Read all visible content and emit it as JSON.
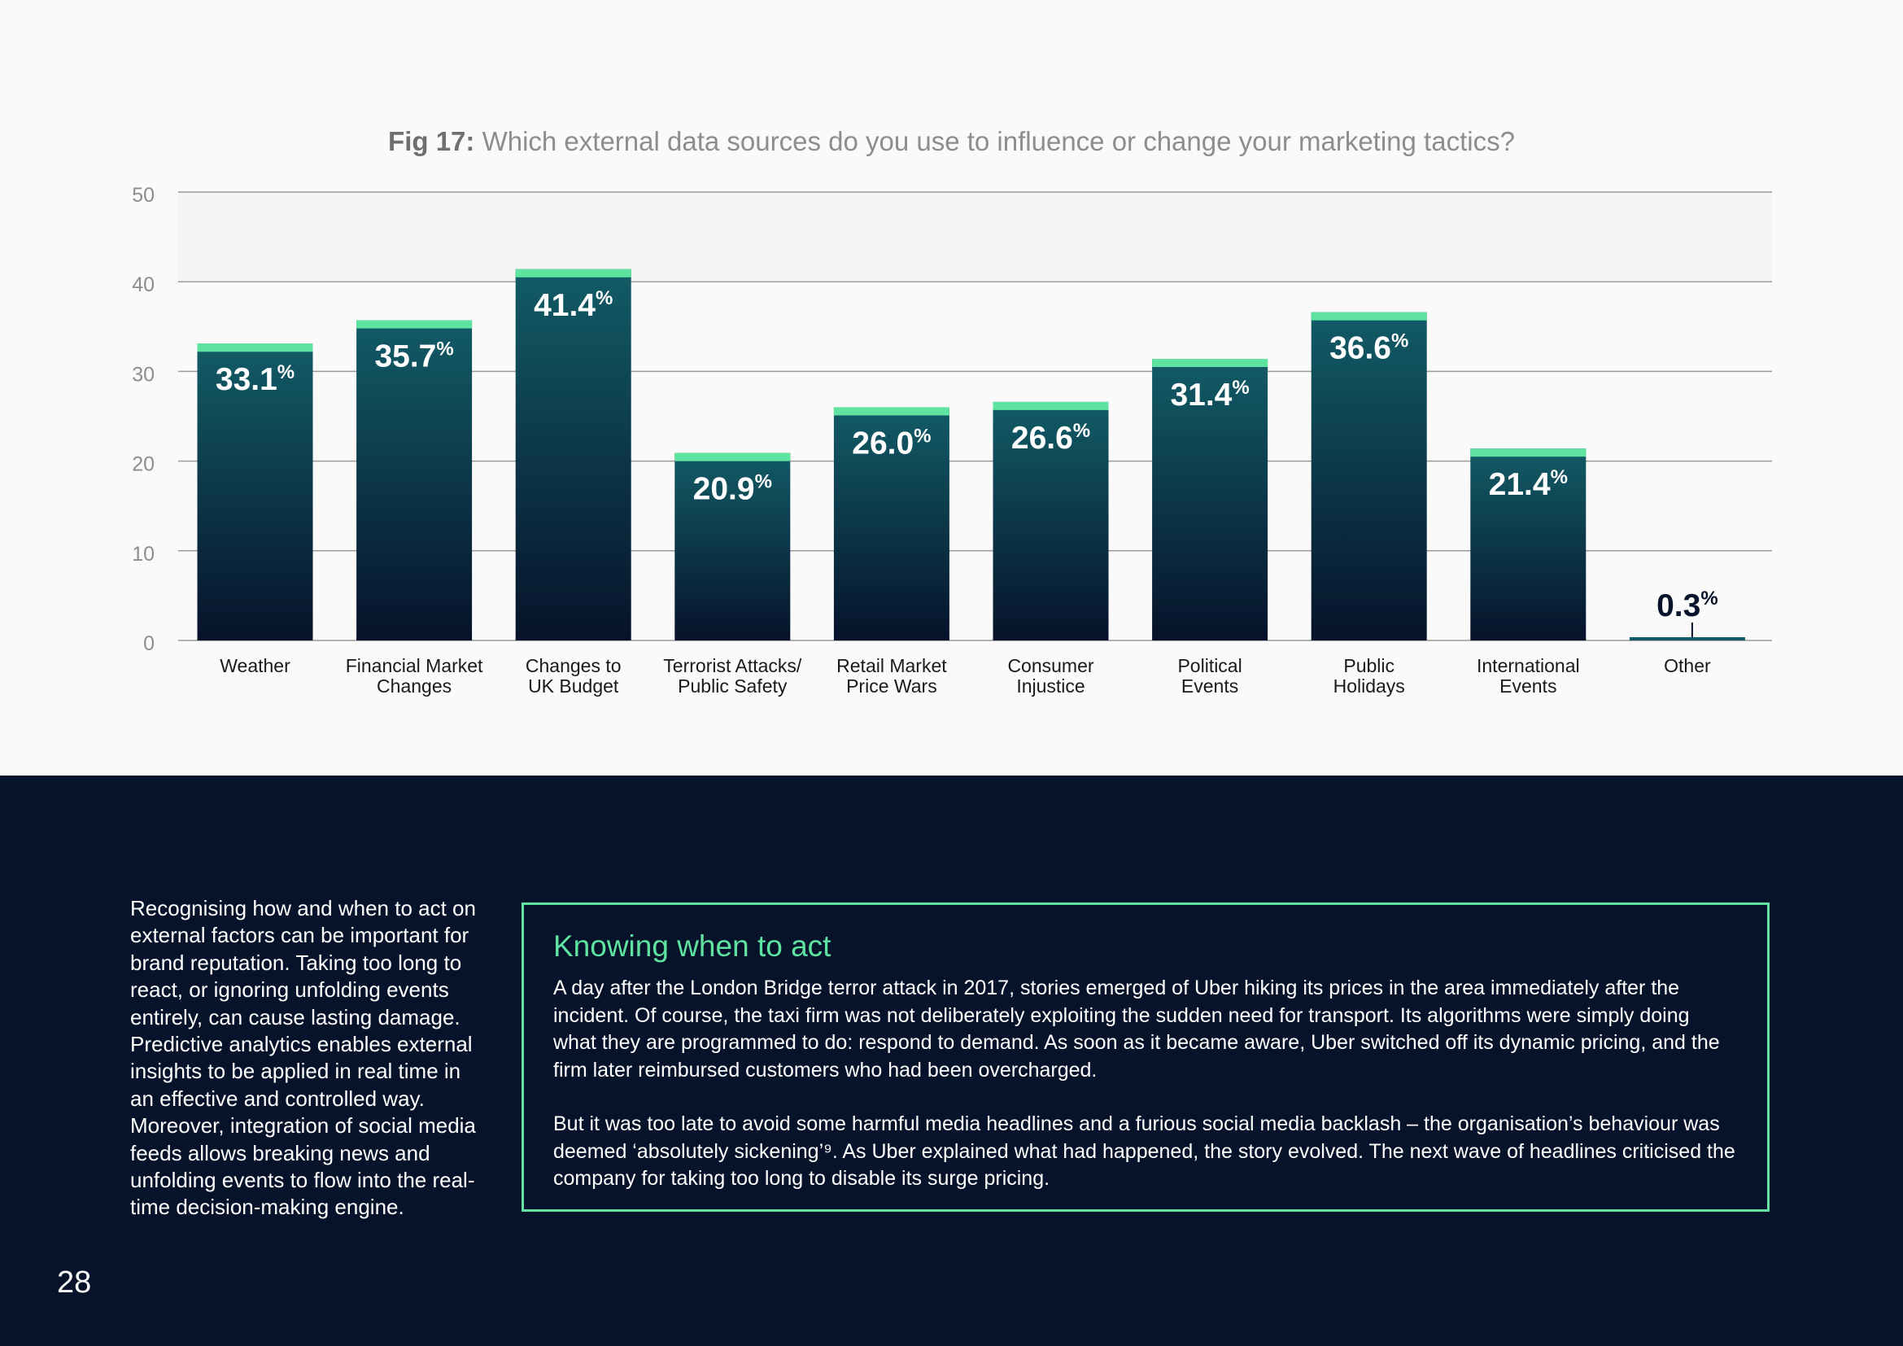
{
  "figure": {
    "label": "Fig 17:",
    "question": "Which external data sources do you use to influence or change your marketing tactics?"
  },
  "chart_data": {
    "type": "bar",
    "title": "Fig 17: Which external data sources do you use to influence or change your marketing tactics?",
    "categories": [
      [
        "Weather"
      ],
      [
        "Financial Market",
        "Changes"
      ],
      [
        "Changes to",
        "UK Budget"
      ],
      [
        "Terrorist Attacks/",
        "Public Safety"
      ],
      [
        "Retail Market",
        "Price Wars"
      ],
      [
        "Consumer",
        "Injustice"
      ],
      [
        "Political",
        "Events"
      ],
      [
        "Public",
        "Holidays"
      ],
      [
        "International",
        "Events"
      ],
      [
        "Other"
      ]
    ],
    "values": [
      33.1,
      35.7,
      41.4,
      20.9,
      26.0,
      26.6,
      31.4,
      36.6,
      21.4,
      0.3
    ],
    "value_labels": [
      "33.1",
      "35.7",
      "41.4",
      "20.9",
      "26.0",
      "26.6",
      "31.4",
      "36.6",
      "21.4",
      "0.3"
    ],
    "value_suffix": "%",
    "yticks": [
      0,
      10,
      20,
      30,
      40,
      50
    ],
    "ylim": [
      0,
      50
    ],
    "xlabel": "",
    "ylabel": "",
    "grid": true,
    "colors": {
      "bar_top": "#125c67",
      "bar_bottom": "#06122a",
      "bar_cap": "#5fe3a1",
      "grid": "#9a9a9a",
      "tick_text": "#8d8d8d",
      "label_text": "#1a1a1a",
      "value_text_inside": "#ffffff",
      "value_text_outside": "#06132a",
      "plot_band": "#f5f5f3"
    }
  },
  "sidebar_text": "Recognising how and when to act on external factors can be important for brand reputation. Taking too long to react, or ignoring unfolding events entirely, can cause lasting damage. Predictive analytics enables external insights to be applied in real time in an effective and controlled way. Moreover, integration of social media feeds allows breaking news and unfolding events to flow into the real-time decision-making engine.",
  "callout": {
    "title": "Knowing when to act",
    "paragraphs": [
      "A day after the London Bridge terror attack in 2017, stories emerged of Uber hiking its prices in the area immediately after the incident. Of course, the taxi firm was not deliberately exploiting the sudden need for transport. Its algorithms were simply doing what they are programmed to do: respond to demand. As soon as it became aware, Uber switched off its dynamic pricing, and the firm later reimbursed customers who had been overcharged.",
      "But it was too late to avoid some harmful media headlines and a furious social media backlash – the organisation’s behaviour was deemed ‘absolutely sickening’⁹. As Uber explained what had happened, the story evolved. The next wave of headlines criticised the company for taking too long to disable its surge pricing."
    ]
  },
  "page_number": "28"
}
